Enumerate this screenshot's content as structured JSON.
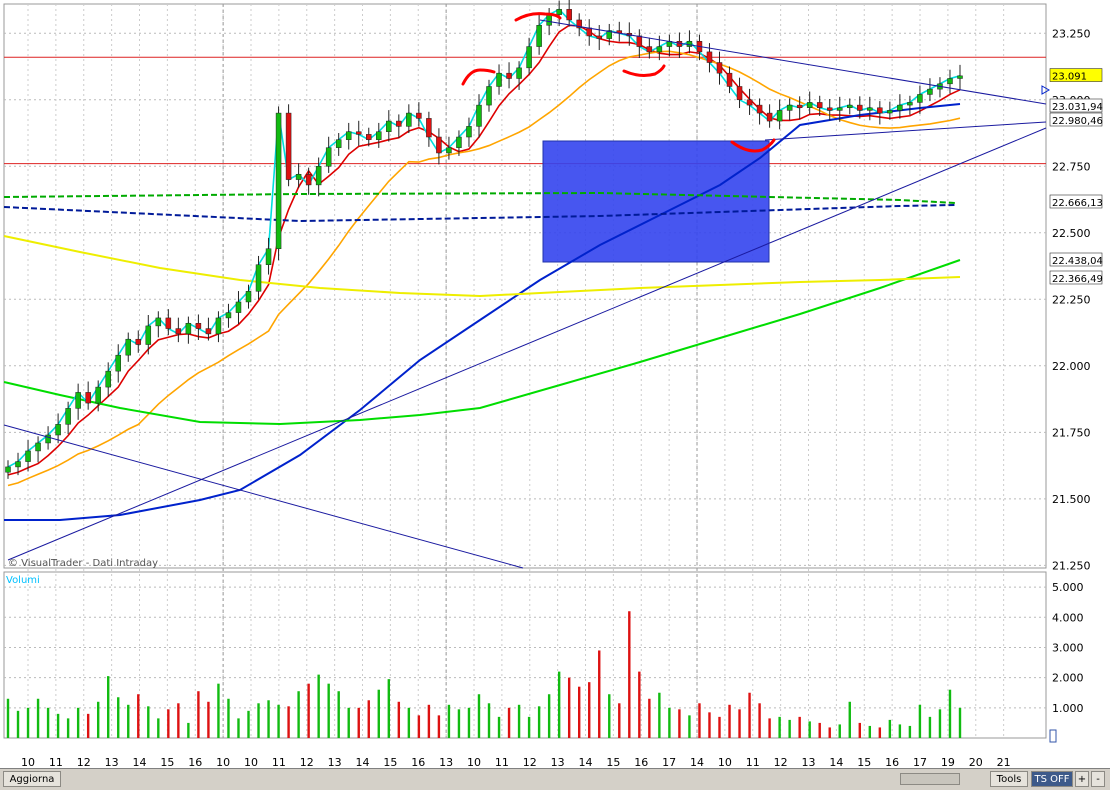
{
  "watermark": "© VisualTrader - Dati Intraday",
  "volume_label": "Volumi",
  "toolbar": {
    "refresh_label": "Aggiorna",
    "tools_label": "Tools",
    "ts_label": "TS OFF",
    "plus_label": "+",
    "minus_label": "-"
  },
  "chart_data": [
    {
      "type": "candlestick",
      "title": "",
      "x_tick_labels": [
        "10",
        "11",
        "12",
        "13",
        "14",
        "15",
        "16",
        "10",
        "10",
        "11",
        "12",
        "13",
        "14",
        "15",
        "16",
        "13",
        "10",
        "11",
        "12",
        "13",
        "14",
        "15",
        "16",
        "17",
        "14",
        "10",
        "11",
        "12",
        "13",
        "14",
        "15",
        "16",
        "17",
        "19",
        "20",
        "21"
      ],
      "x_tick_highlight": [
        "10",
        "13",
        "14"
      ],
      "y_ticks": [
        "23.250",
        "23.000",
        "22.750",
        "22.500",
        "22.250",
        "22.000",
        "21.750",
        "21.500",
        "21.250"
      ],
      "ylim": [
        21.24,
        23.36
      ],
      "price_tags": [
        {
          "text": "23.091",
          "color": "#ffff00",
          "value": 23.091
        },
        {
          "text": "23.031,94",
          "color": "#ffffff",
          "value": 23.032
        },
        {
          "text": "22.980,46",
          "color": "#ffffff",
          "value": 22.98
        },
        {
          "text": "22.666,13",
          "color": "#ffffff",
          "value": 22.666
        },
        {
          "text": "22.438,04",
          "color": "#ffffff",
          "value": 22.438
        },
        {
          "text": "22.366,49",
          "color": "#ffffff",
          "value": 22.366
        }
      ],
      "horizontal_lines": [
        {
          "value": 23.16,
          "color": "#dd2222"
        },
        {
          "value": 22.76,
          "color": "#dd2222"
        }
      ],
      "series": [
        {
          "name": "",
          "kind": "close",
          "color": "#00e0e0"
        },
        {
          "name": "",
          "kind": "ma_fast",
          "color": "#dd0000"
        },
        {
          "name": "",
          "kind": "ma_mid",
          "color": "#ffa500"
        },
        {
          "name": "",
          "kind": "ma_slow",
          "color": "#0022cc"
        },
        {
          "name": "",
          "kind": "ma_long1",
          "color": "#00dd00"
        },
        {
          "name": "",
          "kind": "ma_long2",
          "color": "#eeee00"
        }
      ],
      "candles_close": [
        21.62,
        21.64,
        21.68,
        21.71,
        21.74,
        21.78,
        21.84,
        21.9,
        21.86,
        21.92,
        21.98,
        22.04,
        22.1,
        22.08,
        22.15,
        22.18,
        22.14,
        22.12,
        22.16,
        22.14,
        22.12,
        22.18,
        22.2,
        22.24,
        22.28,
        22.38,
        22.44,
        22.95,
        22.7,
        22.72,
        22.68,
        22.75,
        22.82,
        22.85,
        22.88,
        22.87,
        22.85,
        22.88,
        22.92,
        22.9,
        22.95,
        22.93,
        22.86,
        22.8,
        22.82,
        22.86,
        22.9,
        22.98,
        23.05,
        23.1,
        23.08,
        23.12,
        23.2,
        23.28,
        23.32,
        23.34,
        23.3,
        23.27,
        23.24,
        23.23,
        23.26,
        23.25,
        23.24,
        23.2,
        23.18,
        23.2,
        23.22,
        23.2,
        23.22,
        23.18,
        23.14,
        23.1,
        23.05,
        23.0,
        22.98,
        22.95,
        22.92,
        22.96,
        22.98,
        22.97,
        22.99,
        22.97,
        22.96,
        22.97,
        22.98,
        22.96,
        22.97,
        22.95,
        22.96,
        22.98,
        22.99,
        23.02,
        23.04,
        23.06,
        23.08,
        23.09
      ],
      "annotations": [
        "rectangle",
        "trendlines",
        "red-arcs"
      ]
    },
    {
      "type": "bar",
      "title": "Volumi",
      "y_ticks": [
        "5.000",
        "4.000",
        "3.000",
        "2.000",
        "1.000"
      ],
      "ylim": [
        0,
        5500
      ],
      "values": [
        1300,
        900,
        1000,
        1300,
        1000,
        800,
        650,
        1000,
        800,
        1200,
        2050,
        1350,
        1100,
        1450,
        1050,
        650,
        950,
        1150,
        500,
        1550,
        1200,
        1800,
        1300,
        650,
        900,
        1150,
        1250,
        1100,
        1050,
        1550,
        1800,
        2100,
        1800,
        1550,
        1000,
        1000,
        1250,
        1600,
        1950,
        1200,
        1000,
        750,
        1100,
        750,
        1100,
        950,
        1000,
        1450,
        1150,
        700,
        1000,
        1100,
        700,
        1050,
        1450,
        2200,
        2000,
        1700,
        1850,
        2900,
        1450,
        1150,
        4200,
        2200,
        1300,
        1500,
        1000,
        950,
        750,
        1150,
        850,
        700,
        1100,
        950,
        1500,
        1150,
        650,
        700,
        600,
        700,
        550,
        500,
        350,
        450,
        1200,
        500,
        400,
        350,
        600,
        450,
        400,
        1100,
        700,
        950,
        1600,
        1000
      ],
      "colors_pattern": "alternating green/red"
    }
  ]
}
